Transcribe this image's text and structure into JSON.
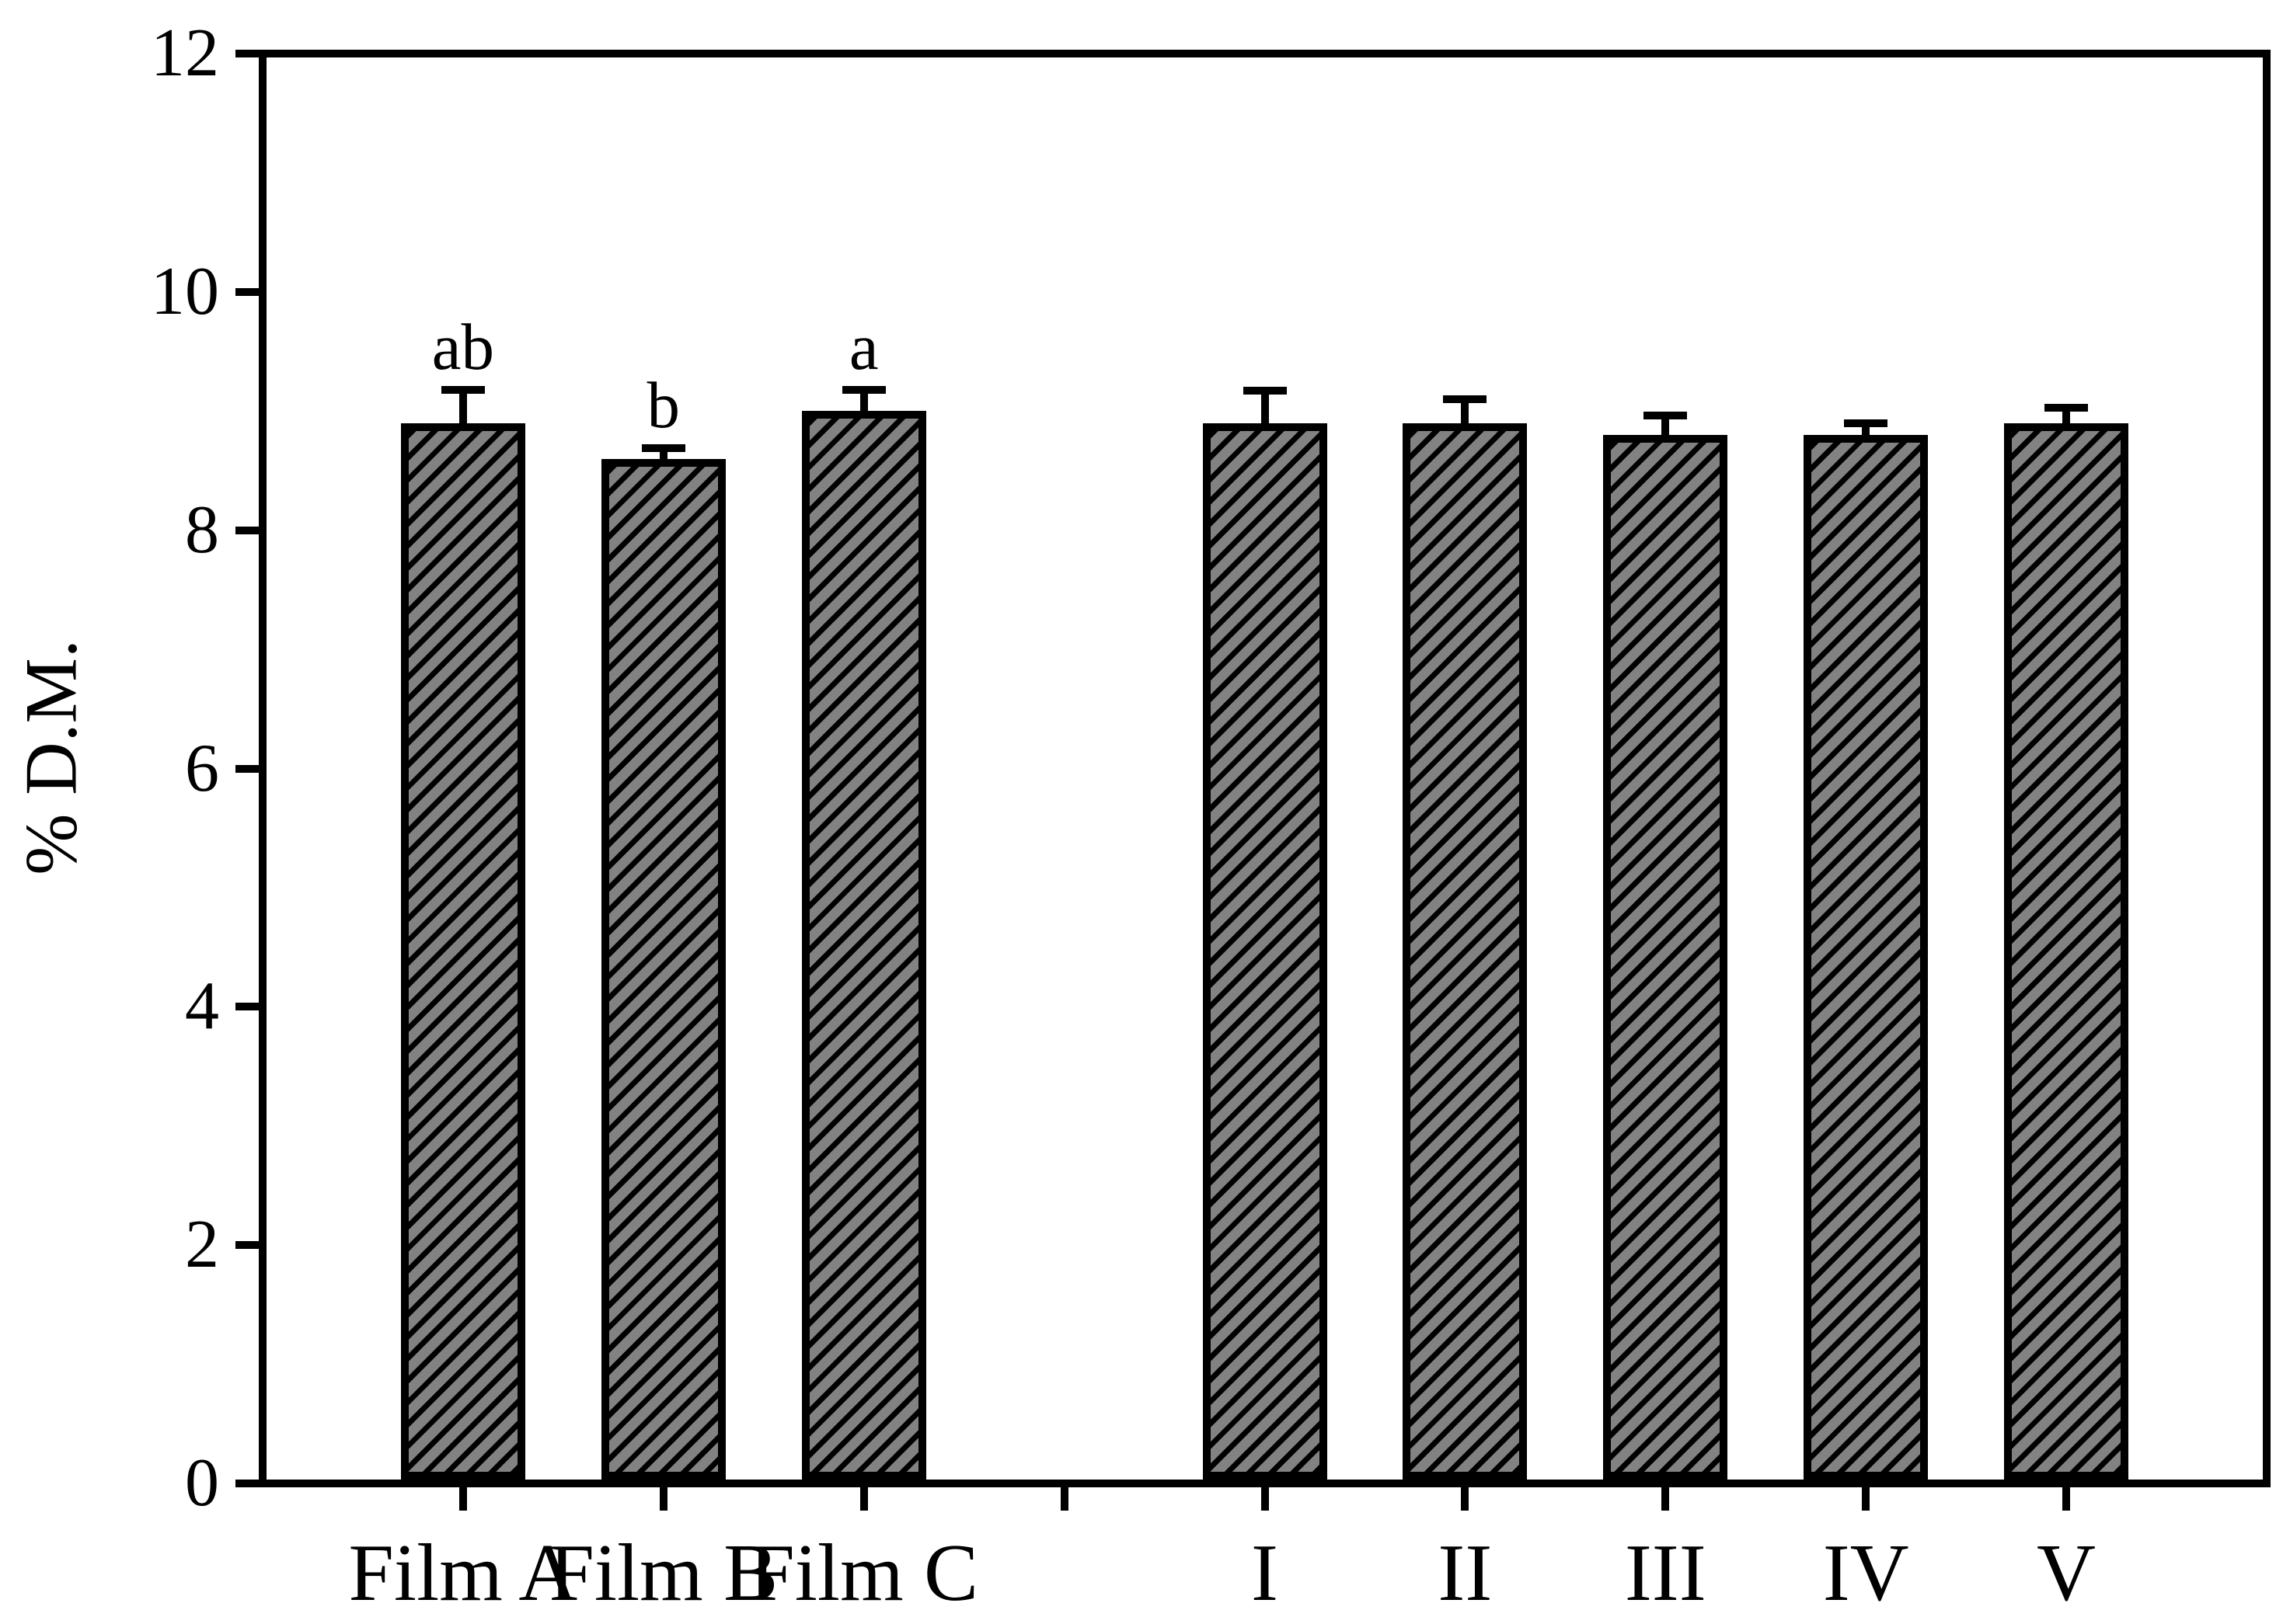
{
  "figure": {
    "background": "#ffffff"
  },
  "chart_data": {
    "type": "bar",
    "title": "",
    "xlabel": "",
    "ylabel": "% D.M.",
    "ylim": [
      0,
      12
    ],
    "yticks": [
      0,
      2,
      4,
      6,
      8,
      10,
      12
    ],
    "categories": [
      "Film A",
      "Film B",
      "Film C",
      "",
      "I",
      "II",
      "III",
      "IV",
      "V"
    ],
    "values": [
      8.9,
      8.6,
      9.0,
      null,
      8.9,
      8.9,
      8.8,
      8.8,
      8.9
    ],
    "errors": [
      0.28,
      0.09,
      0.18,
      null,
      0.27,
      0.2,
      0.16,
      0.1,
      0.13
    ],
    "sig_letters": [
      "ab",
      "b",
      "a",
      "",
      "",
      "",
      "",
      "",
      ""
    ],
    "bar_fill": "#828282",
    "hatch_color": "#000000",
    "hatch_style": "diagonal-forward",
    "axis_color": "#000000",
    "grid": false,
    "legend": null
  }
}
